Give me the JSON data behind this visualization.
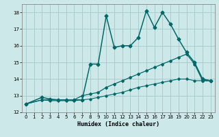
{
  "xlabel": "Humidex (Indice chaleur)",
  "xlim": [
    -0.5,
    23.5
  ],
  "ylim": [
    12,
    18.5
  ],
  "yticks": [
    12,
    13,
    14,
    15,
    16,
    17,
    18
  ],
  "xticks": [
    0,
    1,
    2,
    3,
    4,
    5,
    6,
    7,
    8,
    9,
    10,
    11,
    12,
    13,
    14,
    15,
    16,
    17,
    18,
    19,
    20,
    21,
    22,
    23
  ],
  "background_color": "#cce8e8",
  "grid_color": "#aacccc",
  "line_color": "#006868",
  "series": [
    {
      "x": [
        0,
        2,
        3,
        4,
        5,
        6,
        7,
        8,
        9,
        10,
        11,
        12,
        13,
        14,
        15,
        16,
        17,
        18,
        19,
        20,
        21,
        22,
        23
      ],
      "y": [
        12.5,
        12.9,
        12.8,
        12.75,
        12.75,
        12.75,
        12.75,
        14.9,
        14.9,
        17.8,
        15.9,
        16.0,
        16.0,
        16.5,
        18.1,
        17.1,
        18.0,
        17.3,
        16.4,
        15.6,
        15.0,
        14.0,
        13.9
      ],
      "marker": "D",
      "markersize": 2.5,
      "linewidth": 1.1
    },
    {
      "x": [
        0,
        2,
        3,
        4,
        5,
        6,
        7,
        8,
        9,
        10,
        11,
        12,
        13,
        14,
        15,
        16,
        17,
        18,
        19,
        20,
        21,
        22,
        23
      ],
      "y": [
        12.5,
        12.75,
        12.75,
        12.75,
        12.75,
        12.75,
        13.0,
        13.1,
        13.2,
        13.5,
        13.7,
        13.9,
        14.1,
        14.3,
        14.5,
        14.7,
        14.9,
        15.1,
        15.3,
        15.5,
        14.9,
        13.9,
        13.9
      ],
      "marker": "D",
      "markersize": 2.0,
      "linewidth": 0.9
    },
    {
      "x": [
        0,
        2,
        3,
        4,
        5,
        6,
        7,
        8,
        9,
        10,
        11,
        12,
        13,
        14,
        15,
        16,
        17,
        18,
        19,
        20,
        21,
        22,
        23
      ],
      "y": [
        12.5,
        12.75,
        12.7,
        12.7,
        12.7,
        12.7,
        12.75,
        12.8,
        12.9,
        13.0,
        13.1,
        13.2,
        13.35,
        13.5,
        13.6,
        13.7,
        13.8,
        13.9,
        14.0,
        14.0,
        13.9,
        13.9,
        13.9
      ],
      "marker": "D",
      "markersize": 1.8,
      "linewidth": 0.8
    }
  ]
}
